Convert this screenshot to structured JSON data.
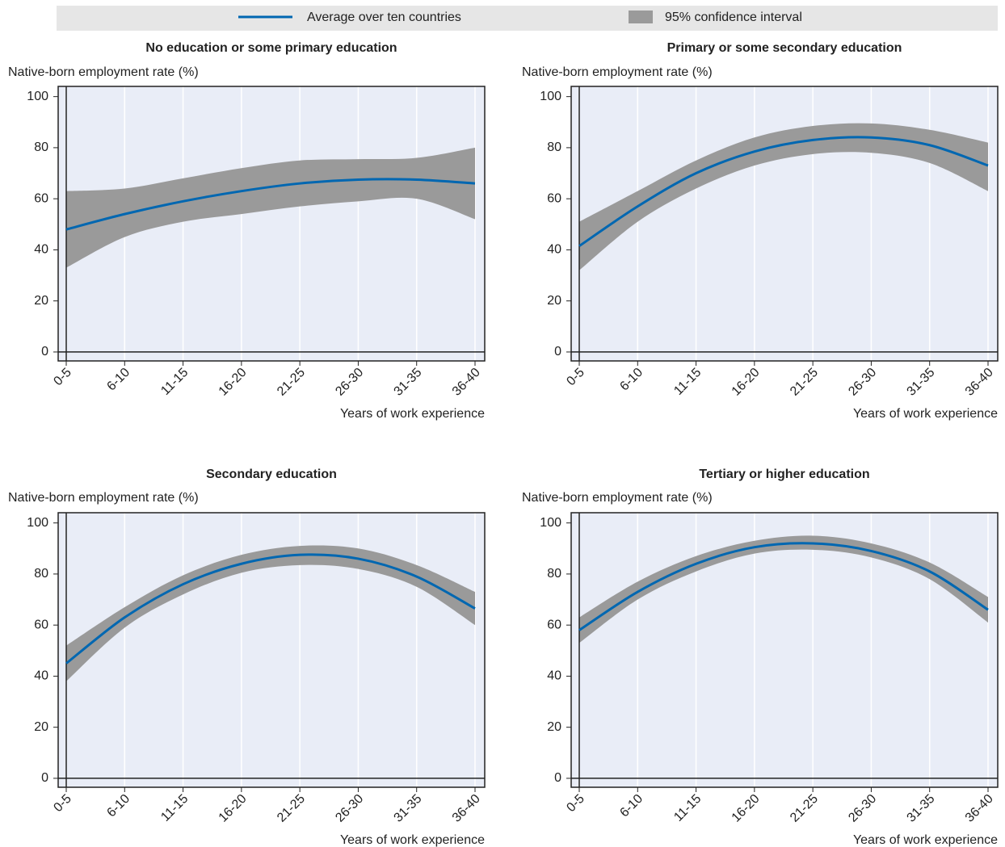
{
  "legend": [
    {
      "label": "Average over ten countries",
      "color": "#0067b1"
    },
    {
      "label": "95% confidence interval",
      "color": "#9a9a9a"
    }
  ],
  "chart_data": [
    {
      "type": "line",
      "title": "No education or some primary education",
      "y_label": "Native-born employment rate (%)",
      "x_label": "Years of work experience",
      "categories": [
        "0-5",
        "6-10",
        "11-15",
        "16-20",
        "21-25",
        "26-30",
        "31-35",
        "36-40"
      ],
      "values": [
        48,
        54,
        59,
        63,
        66,
        67.5,
        67.5,
        66
      ],
      "ci_lower": [
        33,
        45,
        51,
        54,
        57,
        59,
        60,
        52
      ],
      "ci_upper": [
        63,
        64,
        68,
        72,
        75,
        75.5,
        76,
        80
      ],
      "ylim": [
        -3.5,
        104
      ],
      "yticks": [
        0,
        20,
        40,
        60,
        80,
        100
      ],
      "grid": "x"
    },
    {
      "type": "line",
      "title": "Primary or some secondary education",
      "y_label": "Native-born employment rate (%)",
      "x_label": "Years of work experience",
      "categories": [
        "0-5",
        "6-10",
        "11-15",
        "16-20",
        "21-25",
        "26-30",
        "31-35",
        "36-40"
      ],
      "values": [
        41.5,
        57,
        70,
        78.5,
        83,
        84,
        81,
        73
      ],
      "ci_lower": [
        32,
        51,
        64,
        73,
        77.5,
        78,
        74,
        63
      ],
      "ci_upper": [
        51,
        63,
        75,
        84,
        88.5,
        89.5,
        87,
        82
      ],
      "ylim": [
        -3.5,
        104
      ],
      "yticks": [
        0,
        20,
        40,
        60,
        80,
        100
      ],
      "grid": "x"
    },
    {
      "type": "line",
      "title": "Secondary education",
      "y_label": "Native-born employment rate (%)",
      "x_label": "Years of work experience",
      "categories": [
        "0-5",
        "6-10",
        "11-15",
        "16-20",
        "21-25",
        "26-30",
        "31-35",
        "36-40"
      ],
      "values": [
        45,
        63,
        76,
        84,
        87.5,
        86,
        79,
        66.5
      ],
      "ci_lower": [
        38,
        59,
        72,
        80.5,
        83.5,
        82,
        75,
        60
      ],
      "ci_upper": [
        52,
        67,
        79.5,
        87.5,
        91,
        90,
        83.5,
        73
      ],
      "ylim": [
        -3.5,
        104
      ],
      "yticks": [
        0,
        20,
        40,
        60,
        80,
        100
      ],
      "grid": "x"
    },
    {
      "type": "line",
      "title": "Tertiary or higher education",
      "y_label": "Native-born employment rate (%)",
      "x_label": "Years of work experience",
      "categories": [
        "0-5",
        "6-10",
        "11-15",
        "16-20",
        "21-25",
        "26-30",
        "31-35",
        "36-40"
      ],
      "values": [
        58,
        73,
        84,
        90.5,
        92,
        89,
        81,
        66
      ],
      "ci_lower": [
        53,
        70,
        81,
        88,
        89.5,
        86.5,
        78,
        61
      ],
      "ci_upper": [
        63,
        77,
        87,
        93,
        95,
        92,
        84.5,
        71
      ],
      "ylim": [
        -3.5,
        104
      ],
      "yticks": [
        0,
        20,
        40,
        60,
        80,
        100
      ],
      "grid": "x"
    }
  ]
}
